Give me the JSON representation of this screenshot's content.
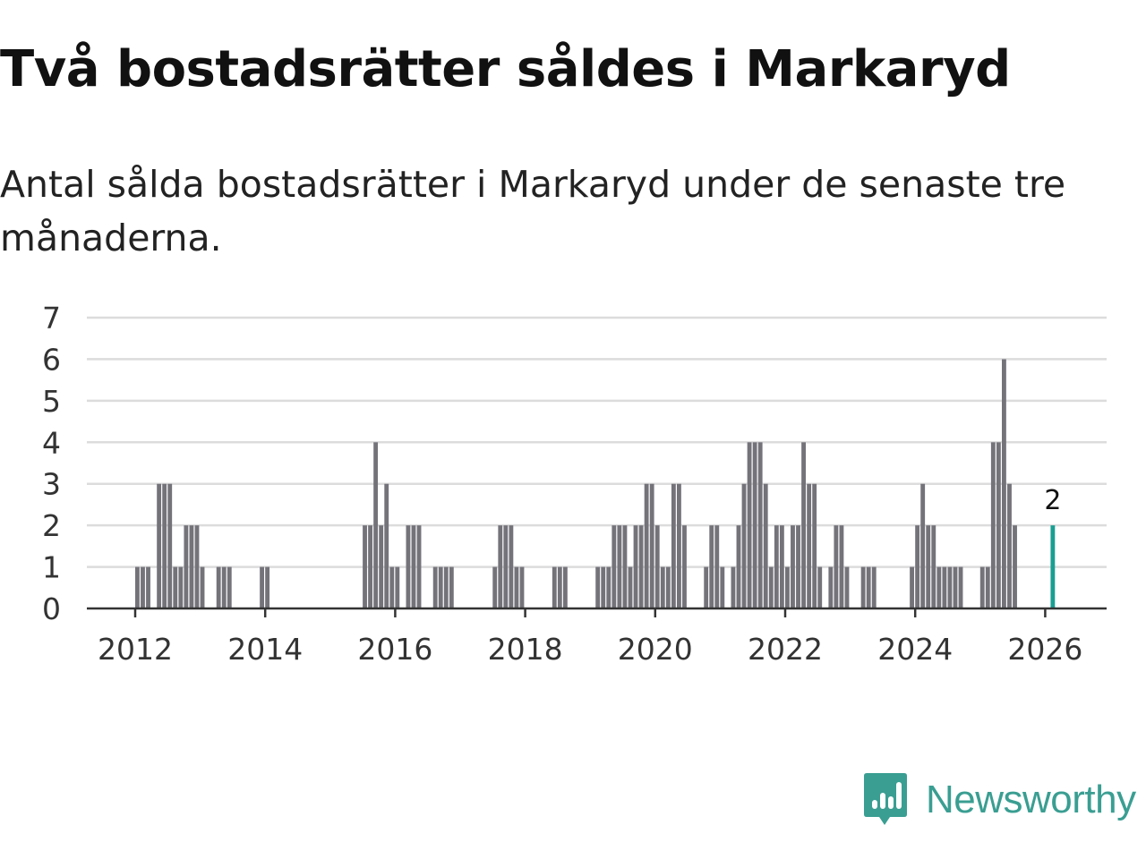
{
  "header": {
    "title": "Två bostadsrätter såldes i Markaryd",
    "subtitle": "Antal sålda bostadsrätter i Markaryd under de senaste tre månaderna."
  },
  "brand": {
    "name": "Newsworthy",
    "color": "#3a9e92"
  },
  "colors": {
    "bar": "#74737a",
    "highlight": "#1a9e92",
    "grid": "#dcdcdc",
    "axis": "#333333"
  },
  "chart_data": {
    "type": "bar",
    "title": "Två bostadsrätter såldes i Markaryd",
    "subtitle": "Antal sålda bostadsrätter i Markaryd under de senaste tre månaderna.",
    "xlabel": "",
    "ylabel": "",
    "ylim": [
      0,
      7
    ],
    "xlim": [
      2011.3,
      2026.9
    ],
    "yticks": [
      0,
      1,
      2,
      3,
      4,
      5,
      6,
      7
    ],
    "xticks": [
      2012,
      2014,
      2016,
      2018,
      2020,
      2022,
      2024,
      2026
    ],
    "grid": true,
    "bar_interval": "month",
    "series": [
      {
        "name": "Sålda bostadsrätter",
        "points": [
          {
            "x": "2012-01",
            "y": 1
          },
          {
            "x": "2012-02",
            "y": 1
          },
          {
            "x": "2012-03",
            "y": 1
          },
          {
            "x": "2012-05",
            "y": 3
          },
          {
            "x": "2012-06",
            "y": 3
          },
          {
            "x": "2012-07",
            "y": 3
          },
          {
            "x": "2012-08",
            "y": 1
          },
          {
            "x": "2012-09",
            "y": 1
          },
          {
            "x": "2012-10",
            "y": 2
          },
          {
            "x": "2012-11",
            "y": 2
          },
          {
            "x": "2012-12",
            "y": 2
          },
          {
            "x": "2013-01",
            "y": 1
          },
          {
            "x": "2013-04",
            "y": 1
          },
          {
            "x": "2013-05",
            "y": 1
          },
          {
            "x": "2013-06",
            "y": 1
          },
          {
            "x": "2013-12",
            "y": 1
          },
          {
            "x": "2014-01",
            "y": 1
          },
          {
            "x": "2015-07",
            "y": 2
          },
          {
            "x": "2015-08",
            "y": 2
          },
          {
            "x": "2015-09",
            "y": 4
          },
          {
            "x": "2015-10",
            "y": 2
          },
          {
            "x": "2015-11",
            "y": 3
          },
          {
            "x": "2015-12",
            "y": 1
          },
          {
            "x": "2016-01",
            "y": 1
          },
          {
            "x": "2016-03",
            "y": 2
          },
          {
            "x": "2016-04",
            "y": 2
          },
          {
            "x": "2016-05",
            "y": 2
          },
          {
            "x": "2016-08",
            "y": 1
          },
          {
            "x": "2016-09",
            "y": 1
          },
          {
            "x": "2016-10",
            "y": 1
          },
          {
            "x": "2016-11",
            "y": 1
          },
          {
            "x": "2017-07",
            "y": 1
          },
          {
            "x": "2017-08",
            "y": 2
          },
          {
            "x": "2017-09",
            "y": 2
          },
          {
            "x": "2017-10",
            "y": 2
          },
          {
            "x": "2017-11",
            "y": 1
          },
          {
            "x": "2017-12",
            "y": 1
          },
          {
            "x": "2018-06",
            "y": 1
          },
          {
            "x": "2018-07",
            "y": 1
          },
          {
            "x": "2018-08",
            "y": 1
          },
          {
            "x": "2019-02",
            "y": 1
          },
          {
            "x": "2019-03",
            "y": 1
          },
          {
            "x": "2019-04",
            "y": 1
          },
          {
            "x": "2019-05",
            "y": 2
          },
          {
            "x": "2019-06",
            "y": 2
          },
          {
            "x": "2019-07",
            "y": 2
          },
          {
            "x": "2019-08",
            "y": 1
          },
          {
            "x": "2019-09",
            "y": 2
          },
          {
            "x": "2019-10",
            "y": 2
          },
          {
            "x": "2019-11",
            "y": 3
          },
          {
            "x": "2019-12",
            "y": 3
          },
          {
            "x": "2020-01",
            "y": 2
          },
          {
            "x": "2020-02",
            "y": 1
          },
          {
            "x": "2020-03",
            "y": 1
          },
          {
            "x": "2020-04",
            "y": 3
          },
          {
            "x": "2020-05",
            "y": 3
          },
          {
            "x": "2020-06",
            "y": 2
          },
          {
            "x": "2020-10",
            "y": 1
          },
          {
            "x": "2020-11",
            "y": 2
          },
          {
            "x": "2020-12",
            "y": 2
          },
          {
            "x": "2021-01",
            "y": 1
          },
          {
            "x": "2021-03",
            "y": 1
          },
          {
            "x": "2021-04",
            "y": 2
          },
          {
            "x": "2021-05",
            "y": 3
          },
          {
            "x": "2021-06",
            "y": 4
          },
          {
            "x": "2021-07",
            "y": 4
          },
          {
            "x": "2021-08",
            "y": 4
          },
          {
            "x": "2021-09",
            "y": 3
          },
          {
            "x": "2021-10",
            "y": 1
          },
          {
            "x": "2021-11",
            "y": 2
          },
          {
            "x": "2021-12",
            "y": 2
          },
          {
            "x": "2022-01",
            "y": 1
          },
          {
            "x": "2022-02",
            "y": 2
          },
          {
            "x": "2022-03",
            "y": 2
          },
          {
            "x": "2022-04",
            "y": 4
          },
          {
            "x": "2022-05",
            "y": 3
          },
          {
            "x": "2022-06",
            "y": 3
          },
          {
            "x": "2022-07",
            "y": 1
          },
          {
            "x": "2022-09",
            "y": 1
          },
          {
            "x": "2022-10",
            "y": 2
          },
          {
            "x": "2022-11",
            "y": 2
          },
          {
            "x": "2022-12",
            "y": 1
          },
          {
            "x": "2023-03",
            "y": 1
          },
          {
            "x": "2023-04",
            "y": 1
          },
          {
            "x": "2023-05",
            "y": 1
          },
          {
            "x": "2023-12",
            "y": 1
          },
          {
            "x": "2024-01",
            "y": 2
          },
          {
            "x": "2024-02",
            "y": 3
          },
          {
            "x": "2024-03",
            "y": 2
          },
          {
            "x": "2024-04",
            "y": 2
          },
          {
            "x": "2024-05",
            "y": 1
          },
          {
            "x": "2024-06",
            "y": 1
          },
          {
            "x": "2024-07",
            "y": 1
          },
          {
            "x": "2024-08",
            "y": 1
          },
          {
            "x": "2024-09",
            "y": 1
          },
          {
            "x": "2025-01",
            "y": 1
          },
          {
            "x": "2025-02",
            "y": 1
          },
          {
            "x": "2025-03",
            "y": 4
          },
          {
            "x": "2025-04",
            "y": 4
          },
          {
            "x": "2025-05",
            "y": 6
          },
          {
            "x": "2025-06",
            "y": 3
          },
          {
            "x": "2025-07",
            "y": 2
          }
        ]
      }
    ],
    "highlight": {
      "x": "2026-02",
      "y": 2,
      "label": "2"
    }
  }
}
